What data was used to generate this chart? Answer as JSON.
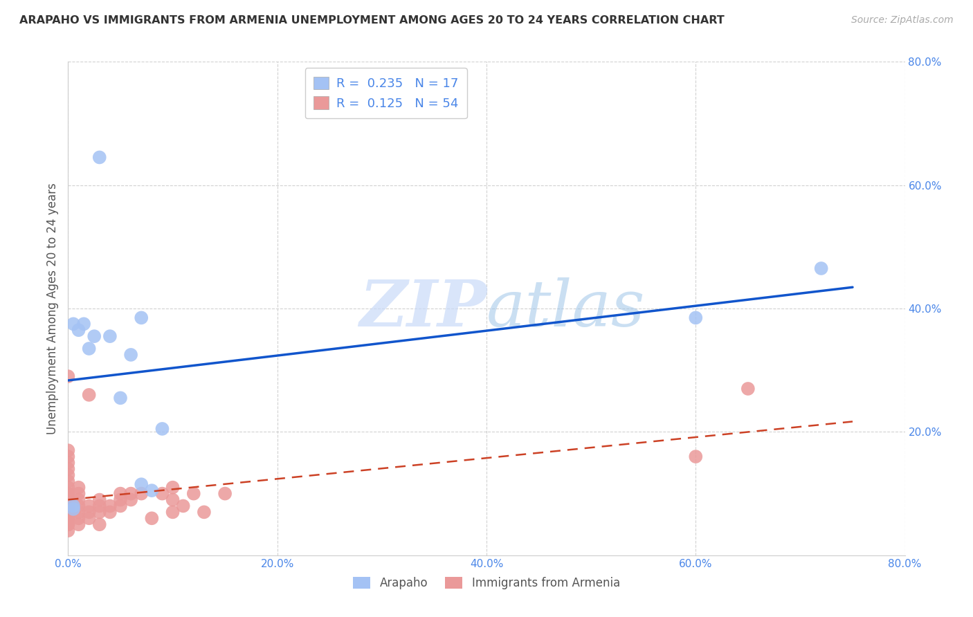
{
  "title": "ARAPAHO VS IMMIGRANTS FROM ARMENIA UNEMPLOYMENT AMONG AGES 20 TO 24 YEARS CORRELATION CHART",
  "source": "Source: ZipAtlas.com",
  "ylabel": "Unemployment Among Ages 20 to 24 years",
  "xlim": [
    0.0,
    0.8
  ],
  "ylim": [
    0.0,
    0.8
  ],
  "xticks": [
    0.0,
    0.2,
    0.4,
    0.6,
    0.8
  ],
  "yticks": [
    0.2,
    0.4,
    0.6,
    0.8
  ],
  "xticklabels": [
    "0.0%",
    "20.0%",
    "40.0%",
    "60.0%",
    "80.0%"
  ],
  "yticklabels": [
    "20.0%",
    "40.0%",
    "60.0%",
    "80.0%"
  ],
  "arapaho_color": "#a4c2f4",
  "armenia_color": "#ea9999",
  "arapaho_R": 0.235,
  "arapaho_N": 17,
  "armenia_R": 0.125,
  "armenia_N": 54,
  "arapaho_line_color": "#1155cc",
  "armenia_line_color": "#cc4125",
  "watermark_zip": "ZIP",
  "watermark_atlas": "atlas",
  "background_color": "#ffffff",
  "grid_color": "#cccccc",
  "tick_color": "#4a86e8",
  "arapaho_x": [
    0.005,
    0.005,
    0.005,
    0.01,
    0.015,
    0.02,
    0.025,
    0.03,
    0.04,
    0.05,
    0.06,
    0.07,
    0.07,
    0.08,
    0.09,
    0.6,
    0.72
  ],
  "arapaho_y": [
    0.075,
    0.08,
    0.375,
    0.365,
    0.375,
    0.335,
    0.355,
    0.645,
    0.355,
    0.255,
    0.325,
    0.385,
    0.115,
    0.105,
    0.205,
    0.385,
    0.465
  ],
  "armenia_x": [
    0.0,
    0.0,
    0.0,
    0.0,
    0.0,
    0.0,
    0.0,
    0.0,
    0.0,
    0.0,
    0.0,
    0.0,
    0.0,
    0.0,
    0.0,
    0.0,
    0.0,
    0.0,
    0.0,
    0.0,
    0.01,
    0.01,
    0.01,
    0.01,
    0.01,
    0.01,
    0.01,
    0.02,
    0.02,
    0.02,
    0.02,
    0.03,
    0.03,
    0.03,
    0.03,
    0.04,
    0.04,
    0.05,
    0.05,
    0.05,
    0.06,
    0.06,
    0.07,
    0.08,
    0.09,
    0.1,
    0.1,
    0.1,
    0.11,
    0.12,
    0.13,
    0.15,
    0.6,
    0.65
  ],
  "armenia_y": [
    0.04,
    0.05,
    0.05,
    0.06,
    0.06,
    0.07,
    0.07,
    0.08,
    0.08,
    0.09,
    0.1,
    0.1,
    0.11,
    0.12,
    0.13,
    0.14,
    0.15,
    0.16,
    0.17,
    0.29,
    0.05,
    0.06,
    0.07,
    0.08,
    0.09,
    0.1,
    0.11,
    0.06,
    0.07,
    0.08,
    0.26,
    0.05,
    0.07,
    0.08,
    0.09,
    0.07,
    0.08,
    0.08,
    0.09,
    0.1,
    0.09,
    0.1,
    0.1,
    0.06,
    0.1,
    0.07,
    0.09,
    0.11,
    0.08,
    0.1,
    0.07,
    0.1,
    0.16,
    0.27
  ]
}
